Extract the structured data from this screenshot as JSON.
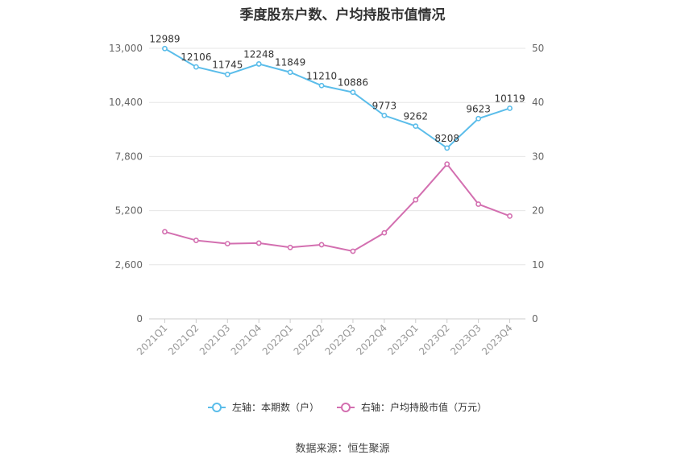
{
  "chart_data": {
    "type": "line",
    "title": "季度股东户数、户均持股市值情况",
    "categories": [
      "2021Q1",
      "2021Q2",
      "2021Q3",
      "2021Q4",
      "2022Q1",
      "2022Q2",
      "2022Q3",
      "2022Q4",
      "2023Q1",
      "2023Q2",
      "2023Q3",
      "2023Q4"
    ],
    "left_axis": {
      "min": 0,
      "max": 13000,
      "ticks": [
        0,
        2600,
        5200,
        7800,
        10400,
        13000
      ],
      "tick_labels": [
        "0",
        "2,600",
        "5,200",
        "7,800",
        "10,400",
        "13,000"
      ]
    },
    "right_axis": {
      "min": 0,
      "max": 50,
      "ticks": [
        0,
        10,
        20,
        30,
        40,
        50
      ],
      "tick_labels": [
        "0",
        "10",
        "20",
        "30",
        "40",
        "50"
      ]
    },
    "grid": true,
    "legend_position": "bottom",
    "series": [
      {
        "name": "左轴：本期数（户）",
        "axis": "left",
        "color": "#5bbdea",
        "show_labels": true,
        "values": [
          12989,
          12106,
          11745,
          12248,
          11849,
          11210,
          10886,
          9773,
          9262,
          8208,
          9623,
          10119
        ]
      },
      {
        "name": "右轴：户均持股市值（万元）",
        "axis": "right",
        "color": "#d36fb0",
        "show_labels": false,
        "values": [
          16.1,
          14.5,
          13.9,
          14.0,
          13.2,
          13.7,
          12.5,
          15.9,
          22.0,
          28.6,
          21.2,
          19.0
        ]
      }
    ]
  },
  "footer": {
    "source": "数据来源：恒生聚源"
  }
}
